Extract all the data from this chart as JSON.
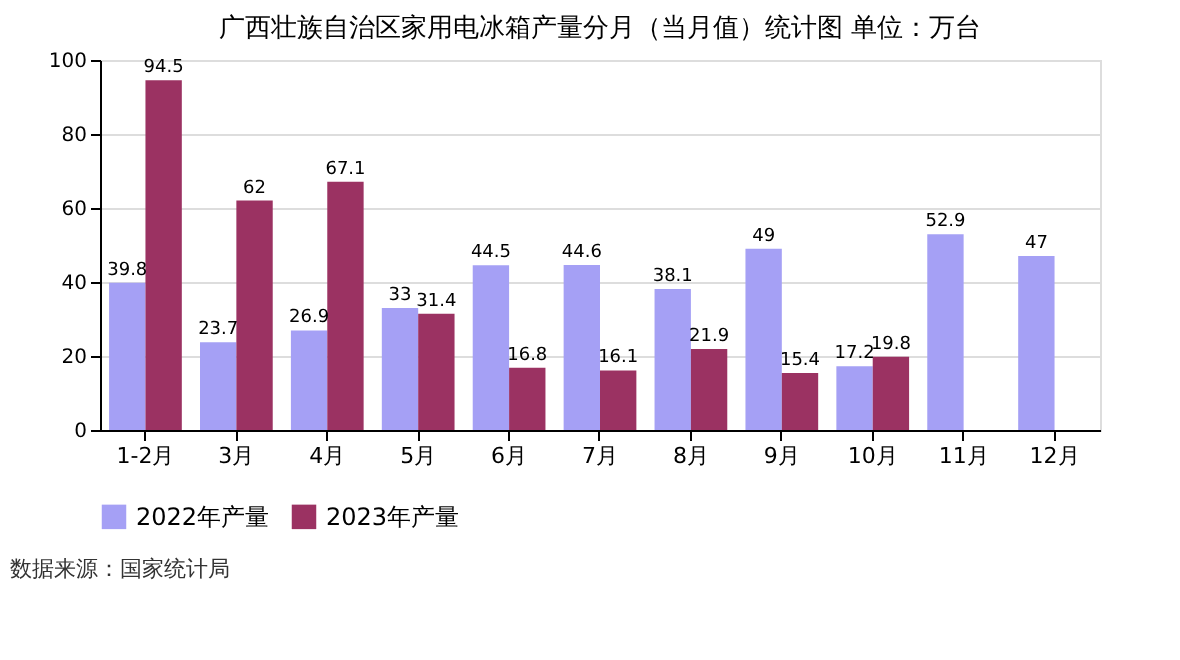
{
  "chart_data": {
    "type": "bar",
    "title": "广西壮族自治区家用电冰箱产量分月（当月值）统计图 单位：万台",
    "categories": [
      "1-2月",
      "3月",
      "4月",
      "5月",
      "6月",
      "7月",
      "8月",
      "9月",
      "10月",
      "11月",
      "12月"
    ],
    "series": [
      {
        "name": "2022年产量",
        "color": "#a5a0f5",
        "values": [
          39.8,
          23.7,
          26.9,
          33,
          44.5,
          44.6,
          38.1,
          49,
          17.2,
          52.9,
          47
        ]
      },
      {
        "name": "2023年产量",
        "color": "#9b3262",
        "values": [
          94.5,
          62,
          67.1,
          31.4,
          16.8,
          16.1,
          21.9,
          15.4,
          19.8,
          null,
          null
        ]
      }
    ],
    "ylim": [
      0,
      100
    ],
    "yticks": [
      0,
      20,
      40,
      60,
      80,
      100
    ],
    "grid": "y",
    "legend": "bottom",
    "data_labels": true,
    "annotations": [
      "数据来源：国家统计局"
    ]
  }
}
